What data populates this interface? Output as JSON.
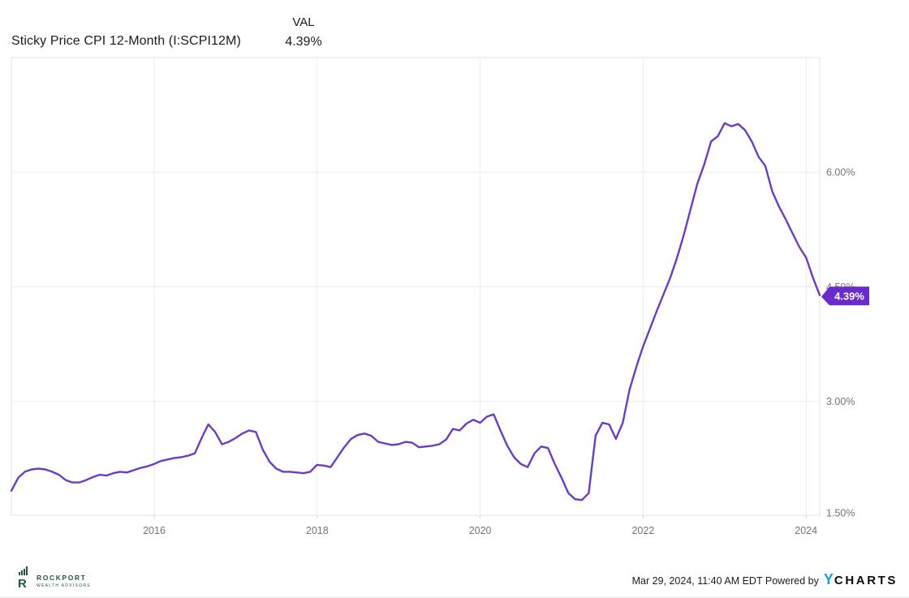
{
  "header": {
    "title": "Sticky Price CPI 12-Month (I:SCPI12M)",
    "val_label": "VAL",
    "val_value": "4.39%"
  },
  "chart_data": {
    "type": "line",
    "title": "Sticky Price CPI 12-Month (I:SCPI12M)",
    "series_name": "Sticky Price CPI 12-Month",
    "unit": "percent",
    "frequency": "monthly",
    "x": [
      "2014-04",
      "2014-05",
      "2014-06",
      "2014-07",
      "2014-08",
      "2014-09",
      "2014-10",
      "2014-11",
      "2014-12",
      "2015-01",
      "2015-02",
      "2015-03",
      "2015-04",
      "2015-05",
      "2015-06",
      "2015-07",
      "2015-08",
      "2015-09",
      "2015-10",
      "2015-11",
      "2015-12",
      "2016-01",
      "2016-02",
      "2016-03",
      "2016-04",
      "2016-05",
      "2016-06",
      "2016-07",
      "2016-08",
      "2016-09",
      "2016-10",
      "2016-11",
      "2016-12",
      "2017-01",
      "2017-02",
      "2017-03",
      "2017-04",
      "2017-05",
      "2017-06",
      "2017-07",
      "2017-08",
      "2017-09",
      "2017-10",
      "2017-11",
      "2017-12",
      "2018-01",
      "2018-02",
      "2018-03",
      "2018-04",
      "2018-05",
      "2018-06",
      "2018-07",
      "2018-08",
      "2018-09",
      "2018-10",
      "2018-11",
      "2018-12",
      "2019-01",
      "2019-02",
      "2019-03",
      "2019-04",
      "2019-05",
      "2019-06",
      "2019-07",
      "2019-08",
      "2019-09",
      "2019-10",
      "2019-11",
      "2019-12",
      "2020-01",
      "2020-02",
      "2020-03",
      "2020-04",
      "2020-05",
      "2020-06",
      "2020-07",
      "2020-08",
      "2020-09",
      "2020-10",
      "2020-11",
      "2020-12",
      "2021-01",
      "2021-02",
      "2021-03",
      "2021-04",
      "2021-05",
      "2021-06",
      "2021-07",
      "2021-08",
      "2021-09",
      "2021-10",
      "2021-11",
      "2021-12",
      "2022-01",
      "2022-02",
      "2022-03",
      "2022-04",
      "2022-05",
      "2022-06",
      "2022-07",
      "2022-08",
      "2022-09",
      "2022-10",
      "2022-11",
      "2022-12",
      "2023-01",
      "2023-02",
      "2023-03",
      "2023-04",
      "2023-05",
      "2023-06",
      "2023-07",
      "2023-08",
      "2023-09",
      "2023-10",
      "2023-11",
      "2023-12",
      "2024-01",
      "2024-02",
      "2024-03"
    ],
    "values": [
      1.83,
      2.0,
      2.08,
      2.11,
      2.12,
      2.11,
      2.08,
      2.04,
      1.97,
      1.94,
      1.94,
      1.97,
      2.01,
      2.04,
      2.03,
      2.06,
      2.08,
      2.07,
      2.1,
      2.13,
      2.15,
      2.18,
      2.22,
      2.24,
      2.26,
      2.27,
      2.29,
      2.32,
      2.52,
      2.7,
      2.6,
      2.44,
      2.47,
      2.52,
      2.58,
      2.62,
      2.6,
      2.37,
      2.21,
      2.12,
      2.08,
      2.08,
      2.07,
      2.06,
      2.08,
      2.17,
      2.16,
      2.14,
      2.27,
      2.4,
      2.51,
      2.56,
      2.58,
      2.55,
      2.47,
      2.45,
      2.43,
      2.44,
      2.47,
      2.46,
      2.4,
      2.41,
      2.42,
      2.44,
      2.5,
      2.64,
      2.62,
      2.71,
      2.76,
      2.72,
      2.8,
      2.83,
      2.62,
      2.42,
      2.27,
      2.18,
      2.14,
      2.32,
      2.41,
      2.39,
      2.18,
      2.0,
      1.8,
      1.72,
      1.71,
      1.8,
      2.55,
      2.72,
      2.7,
      2.51,
      2.72,
      3.15,
      3.45,
      3.72,
      3.95,
      4.18,
      4.4,
      4.62,
      4.88,
      5.18,
      5.52,
      5.85,
      6.1,
      6.4,
      6.47,
      6.64,
      6.6,
      6.63,
      6.55,
      6.4,
      6.2,
      6.08,
      5.75,
      5.55,
      5.38,
      5.2,
      5.02,
      4.88,
      4.62,
      4.39
    ],
    "last_value": 4.39,
    "last_value_label": "4.39%",
    "y_ticks": [
      {
        "label": "1.50%",
        "value": 1.5
      },
      {
        "label": "3.00%",
        "value": 3.0
      },
      {
        "label": "4.50%",
        "value": 4.5
      },
      {
        "label": "6.00%",
        "value": 6.0
      }
    ],
    "x_ticks": [
      {
        "label": "2016",
        "year": 2016
      },
      {
        "label": "2018",
        "year": 2018
      },
      {
        "label": "2020",
        "year": 2020
      },
      {
        "label": "2022",
        "year": 2022
      },
      {
        "label": "2024",
        "year": 2024
      }
    ],
    "ylim": [
      1.5,
      7.5
    ],
    "grid": true,
    "legend": "none",
    "line_color": "#693EC4",
    "badge_color": "#6A2BCD",
    "grid_color": "#ebebeb",
    "border_color": "#e3e3e3",
    "tick_label_color": "#757575"
  },
  "footer": {
    "logo": {
      "name": "ROCKPORT",
      "sub": "WEALTH ADVISORS",
      "r_glyph": "R",
      "color": "#1d5948"
    },
    "timestamp": "Mar 29, 2024, 11:40 AM EDT",
    "powered_by": "Powered by",
    "brand_y": "Y",
    "brand_rest": "CHARTS"
  }
}
